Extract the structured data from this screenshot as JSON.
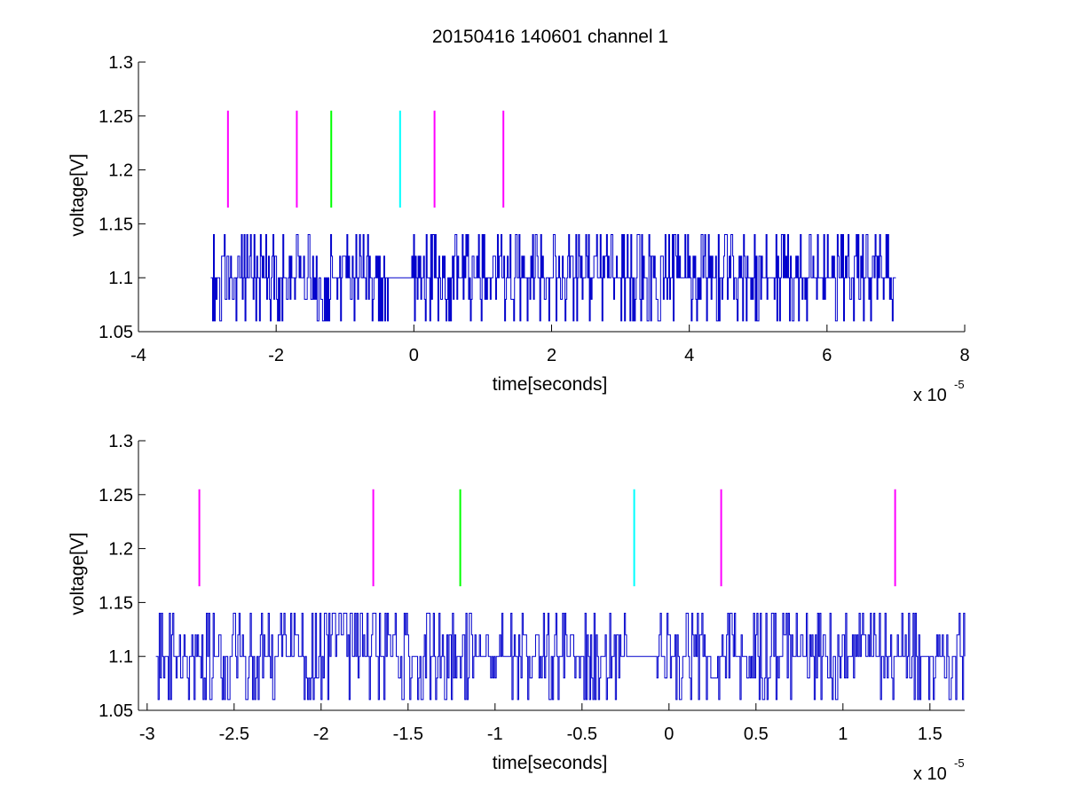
{
  "title": "20150416 140601 channel 1",
  "colors": {
    "trace": "#0000cc",
    "magenta": "#ff00ff",
    "green": "#00ff00",
    "cyan": "#00ffff"
  },
  "chart_data": [
    {
      "type": "line",
      "title": "20150416 140601 channel 1",
      "xlabel": "time[seconds]",
      "ylabel": "voltage[V]",
      "x_scale_label": "x 10",
      "x_scale_exponent": "-5",
      "xlim": [
        -4,
        8
      ],
      "ylim": [
        1.05,
        1.3
      ],
      "x_ticks": [
        -4,
        -2,
        0,
        2,
        4,
        6,
        8
      ],
      "x_tick_labels": [
        "-4",
        "-2",
        "0",
        "2",
        "4",
        "6",
        "8"
      ],
      "y_ticks": [
        1.05,
        1.1,
        1.15,
        1.2,
        1.25,
        1.3
      ],
      "y_tick_labels": [
        "1.05",
        "1.1",
        "1.15",
        "1.2",
        "1.25",
        "1.3"
      ],
      "grid": false,
      "series": [
        {
          "kind": "noisy-trace",
          "color": "#0000cc",
          "x_range": [
            -2.95,
            7.0
          ],
          "levels": [
            1.06,
            1.08,
            1.1,
            1.12,
            1.14
          ],
          "baseline": 1.1,
          "quiet_intervals": [
            [
              -0.35,
              -0.05
            ],
            [
              6.95,
              7.0
            ]
          ]
        }
      ],
      "markers": [
        {
          "x": -2.7,
          "y_range": [
            1.165,
            1.255
          ],
          "color": "magenta"
        },
        {
          "x": -1.7,
          "y_range": [
            1.165,
            1.255
          ],
          "color": "magenta"
        },
        {
          "x": -1.2,
          "y_range": [
            1.165,
            1.255
          ],
          "color": "green"
        },
        {
          "x": -0.2,
          "y_range": [
            1.165,
            1.255
          ],
          "color": "cyan"
        },
        {
          "x": 0.3,
          "y_range": [
            1.165,
            1.255
          ],
          "color": "magenta"
        },
        {
          "x": 1.3,
          "y_range": [
            1.165,
            1.255
          ],
          "color": "magenta"
        }
      ]
    },
    {
      "type": "line",
      "xlabel": "time[seconds]",
      "ylabel": "voltage[V]",
      "x_scale_label": "x 10",
      "x_scale_exponent": "-5",
      "xlim": [
        -3.05,
        1.7
      ],
      "ylim": [
        1.05,
        1.3
      ],
      "x_ticks": [
        -3,
        -2.5,
        -2,
        -1.5,
        -1,
        -0.5,
        0,
        0.5,
        1,
        1.5
      ],
      "x_tick_labels": [
        "-3",
        "-2.5",
        "-2",
        "-1.5",
        "-1",
        "-0.5",
        "0",
        "0.5",
        "1",
        "1.5"
      ],
      "y_ticks": [
        1.05,
        1.1,
        1.15,
        1.2,
        1.25,
        1.3
      ],
      "y_tick_labels": [
        "1.05",
        "1.1",
        "1.15",
        "1.2",
        "1.25",
        "1.3"
      ],
      "grid": false,
      "series": [
        {
          "kind": "noisy-trace",
          "color": "#0000cc",
          "x_range": [
            -2.95,
            1.7
          ],
          "levels": [
            1.06,
            1.08,
            1.1,
            1.12,
            1.14
          ],
          "baseline": 1.1,
          "quiet_intervals": [
            [
              -0.25,
              -0.07
            ]
          ]
        }
      ],
      "markers": [
        {
          "x": -2.7,
          "y_range": [
            1.165,
            1.255
          ],
          "color": "magenta"
        },
        {
          "x": -1.7,
          "y_range": [
            1.165,
            1.255
          ],
          "color": "magenta"
        },
        {
          "x": -1.2,
          "y_range": [
            1.165,
            1.255
          ],
          "color": "green"
        },
        {
          "x": -0.2,
          "y_range": [
            1.165,
            1.255
          ],
          "color": "cyan"
        },
        {
          "x": 0.3,
          "y_range": [
            1.165,
            1.255
          ],
          "color": "magenta"
        },
        {
          "x": 1.3,
          "y_range": [
            1.165,
            1.255
          ],
          "color": "magenta"
        }
      ]
    }
  ]
}
